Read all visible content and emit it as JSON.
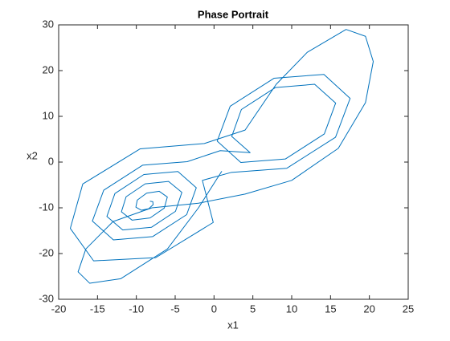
{
  "chart_data": {
    "type": "line",
    "title": "Phase Portrait",
    "x_label": "x1",
    "y_label": "x2",
    "color": "#0072bd",
    "x": [
      -8.25,
      -7.88,
      -7.84,
      -8.4,
      -9.35,
      -10.06,
      -9.88,
      -8.68,
      -7.05,
      -6.01,
      -6.4,
      -8.23,
      -10.55,
      -11.92,
      -11.32,
      -8.86,
      -5.85,
      -4.14,
      -4.96,
      -8.06,
      -11.75,
      -13.79,
      -12.76,
      -9.03,
      -4.65,
      -2.28,
      -3.52,
      -7.89,
      -12.95,
      -15.66,
      -14.2,
      -9.2,
      -3.45,
      0.8,
      4.65,
      2.28,
      3.52,
      7.89,
      12.95,
      15.66,
      14.2,
      9.2,
      3.45,
      0.41,
      2.08,
      7.72,
      14.15,
      17.52,
      15.64,
      9.37,
      2.25,
      -1.5,
      -0.1,
      -7.5,
      -15.5,
      -18.5,
      -16.9,
      -9.5,
      -1.25,
      4,
      8,
      12,
      17,
      19.5,
      20.5,
      19.5,
      16,
      10,
      4,
      -2,
      -8,
      -13,
      -16.5,
      -17.5,
      -16,
      -12,
      -6,
      -2,
      1
    ],
    "values": [
      -8.55,
      -8.66,
      -9.33,
      -10.19,
      -10.53,
      -9.85,
      -8.31,
      -6.8,
      -6.39,
      -7.64,
      -10.05,
      -12.22,
      -12.69,
      -10.87,
      -7.59,
      -4.76,
      -4.23,
      -6.63,
      -10.77,
      -14.26,
      -14.85,
      -11.88,
      -6.87,
      -2.72,
      -2.07,
      -5.61,
      -11.49,
      -16.29,
      -17.01,
      -12.9,
      -6.15,
      -0.69,
      0.09,
      2.5,
      2.07,
      5.61,
      11.49,
      16.29,
      17.01,
      12.9,
      6.15,
      0.69,
      -0.09,
      4.59,
      12.21,
      18.33,
      19.17,
      13.92,
      5.43,
      -1.35,
      -2.25,
      -4,
      -13.2,
      -20.9,
      -21.6,
      -14.5,
      -4.8,
      2.9,
      4.05,
      7,
      17,
      24,
      29,
      27.5,
      22,
      13,
      3,
      -4,
      -7,
      -9,
      -10,
      -13,
      -19,
      -24,
      -26.5,
      -25.5,
      -19,
      -10,
      -2
    ],
    "xlim": [
      -20,
      25
    ],
    "xticks": [
      -20,
      -15,
      -10,
      -5,
      0,
      5,
      10,
      15,
      20,
      25
    ],
    "ylim": [
      -30,
      30
    ],
    "yticks": [
      -30,
      -20,
      -10,
      0,
      10,
      20,
      30
    ]
  }
}
